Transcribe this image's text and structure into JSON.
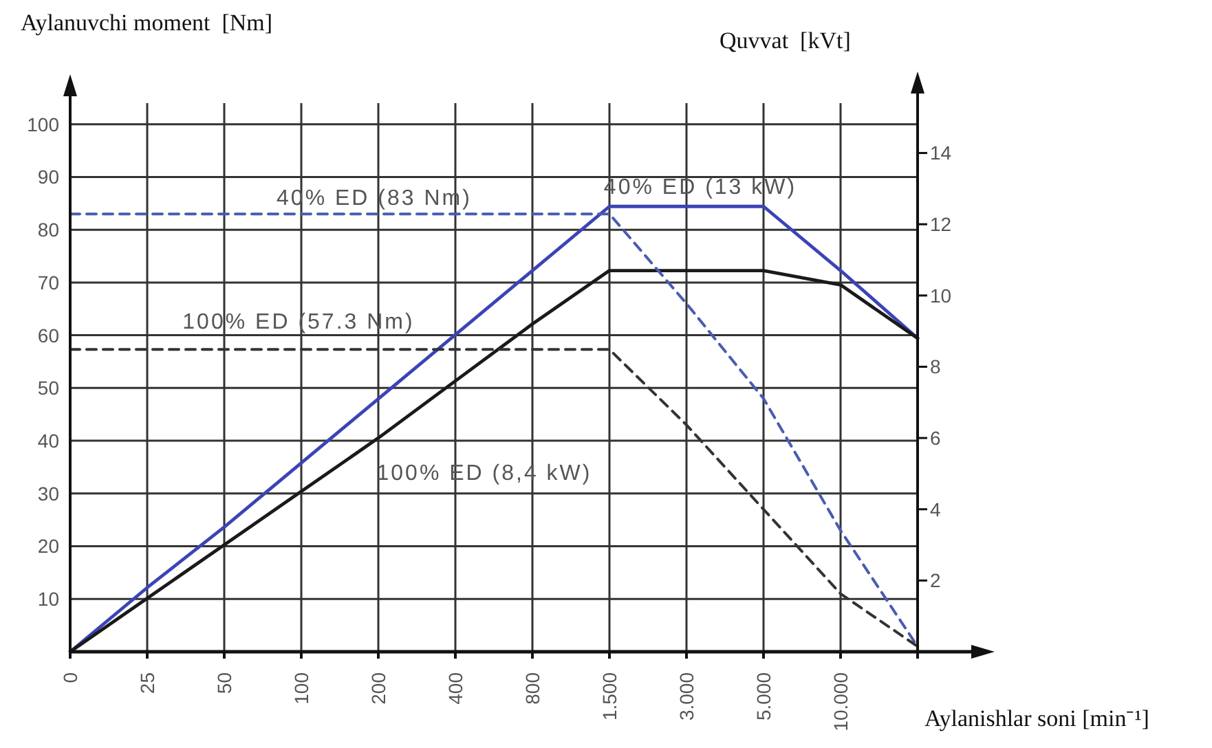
{
  "chart_data": {
    "type": "line",
    "xlabel": "Aylanishlar soni [min⁻¹]",
    "ylabel": "Aylanuvchi moment  [Nm]",
    "y2label": "Quvvat  [kVt]",
    "categories": [
      "0",
      "25",
      "50",
      "100",
      "200",
      "400",
      "800",
      "1.500",
      "3.000",
      "5.000",
      "10.000",
      null
    ],
    "series": [
      {
        "color": "#3b44b5",
        "axis": "y2",
        "values": [
          0,
          1.8,
          3.5,
          5.3,
          7.1,
          8.9,
          10.7,
          12.5,
          12.5,
          12.5,
          10.7,
          8.8
        ]
      },
      {
        "color": "#1a1a1a",
        "axis": "y2",
        "values": [
          0,
          1.5,
          3.0,
          4.5,
          6.0,
          7.6,
          9.2,
          10.7,
          10.7,
          10.7,
          10.3,
          8.8
        ]
      },
      {
        "color": "#4a5cb0",
        "line_style": "dashed",
        "values": [
          83,
          83,
          83,
          83,
          83,
          83,
          83,
          83,
          66,
          48,
          23,
          1
        ]
      },
      {
        "color": "#333333",
        "line_style": "dashed",
        "values": [
          57.3,
          57.3,
          57.3,
          57.3,
          57.3,
          57.3,
          57.3,
          57.3,
          43,
          27,
          11,
          1
        ]
      }
    ],
    "ylim": [
      0,
      104
    ],
    "yticks": [
      10,
      20,
      30,
      40,
      50,
      60,
      70,
      80,
      90,
      100
    ],
    "y2lim": [
      0,
      15.4
    ],
    "y2ticks": [
      2,
      4,
      6,
      8,
      10,
      12,
      14
    ],
    "grid": true,
    "annotations": [
      "40% ED (83 Nm)",
      "40% ED (13 kW)",
      "100% ED (57.3 Nm)",
      "100% ED (8,4 kW)"
    ]
  }
}
